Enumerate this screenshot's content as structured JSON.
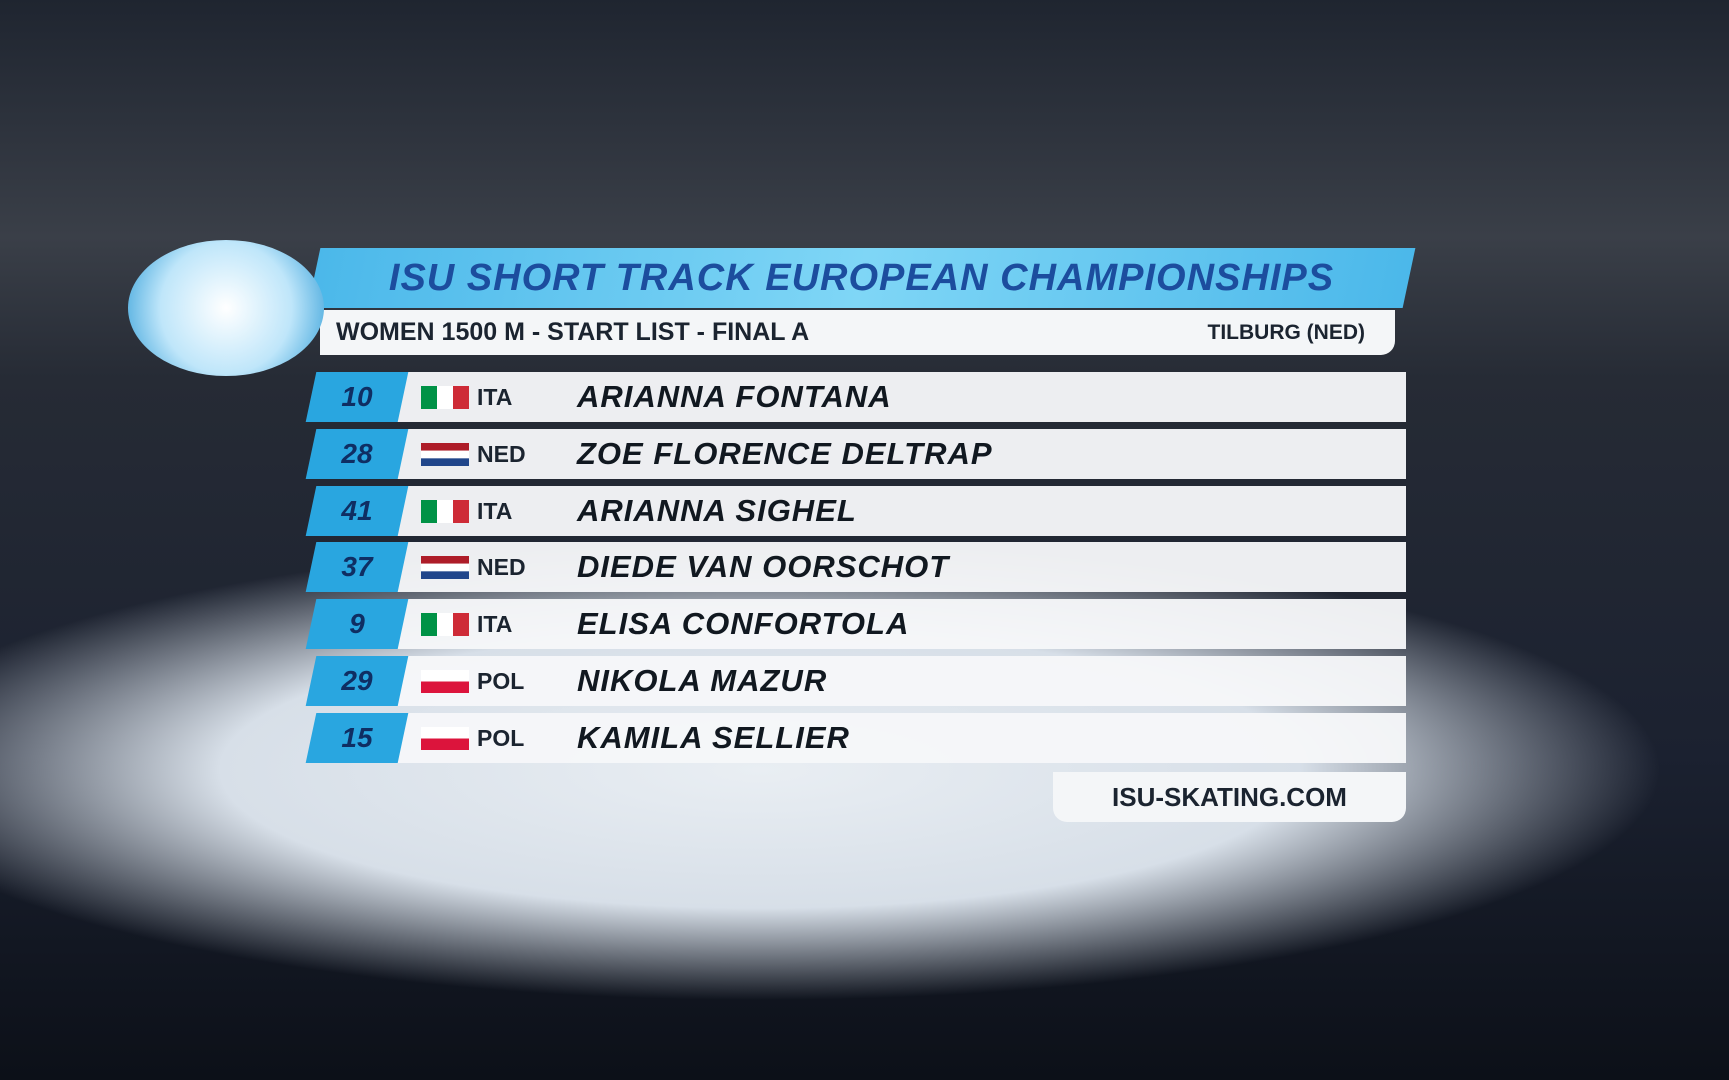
{
  "header": {
    "title": "ISU SHORT TRACK EUROPEAN CHAMPIONSHIPS",
    "subtitle": "WOMEN 1500 M - START LIST - FINAL A",
    "location": "TILBURG (NED)"
  },
  "start_list": [
    {
      "number": "10",
      "country": "ITA",
      "name": "ARIANNA FONTANA"
    },
    {
      "number": "28",
      "country": "NED",
      "name": "ZOE FLORENCE DELTRAP"
    },
    {
      "number": "41",
      "country": "ITA",
      "name": "ARIANNA SIGHEL"
    },
    {
      "number": "37",
      "country": "NED",
      "name": "DIEDE VAN OORSCHOT"
    },
    {
      "number": "9",
      "country": "ITA",
      "name": "ELISA CONFORTOLA"
    },
    {
      "number": "29",
      "country": "POL",
      "name": "NIKOLA MAZUR"
    },
    {
      "number": "15",
      "country": "POL",
      "name": "KAMILA SELLIER"
    }
  ],
  "footer": {
    "url": "ISU-SKATING.COM"
  }
}
